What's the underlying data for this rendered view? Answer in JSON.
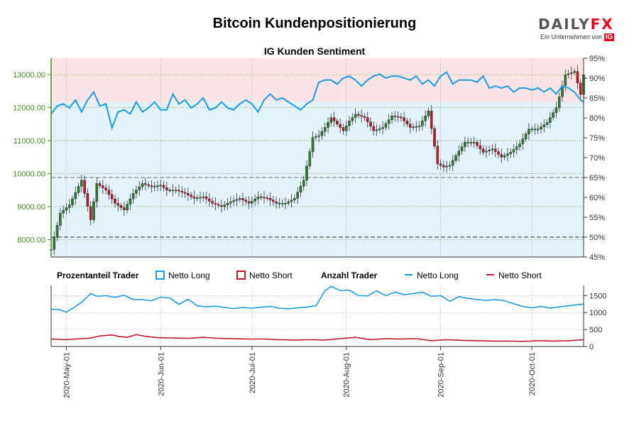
{
  "header": {
    "title": "Bitcoin Kundenpositionierung",
    "subtitle": "IG Kunden Sentiment",
    "logo_main": "DAILY",
    "logo_fx": "FX",
    "logo_sub": "Ein Unternehmen von",
    "logo_ig": "IG"
  },
  "legend": {
    "pct_title": "Prozentanteil Trader",
    "pct_long": "Netto Long",
    "pct_short": "Netto Short",
    "count_title": "Anzahl Trader",
    "count_long": "Netto Long",
    "count_short": "Netto Short"
  },
  "colors": {
    "long": "#1e9be0",
    "short": "#c0182d",
    "candle_up": "#2e7d2e",
    "candle_down": "#c0182d",
    "price_axis": "#4a8a2a"
  },
  "chart_data": [
    {
      "type": "candlestick",
      "title": "IG Kunden Sentiment",
      "y_left_ticks": [
        "8000.00",
        "9000.00",
        "10000.00",
        "11000.00",
        "12000.00",
        "13000.00"
      ],
      "y_left_range": [
        7470,
        13500
      ],
      "y_right_ticks": [
        "45%",
        "50%",
        "55%",
        "60%",
        "65%",
        "70%",
        "75%",
        "80%",
        "85%",
        "90%",
        "95%"
      ],
      "y_right_range": [
        45,
        95
      ],
      "x_ticks": [
        "2020-May-01",
        "2020-Jun-01",
        "2020-Jul-01",
        "2020-Aug-01",
        "2020-Sep-01",
        "2020-Oct-01"
      ],
      "x_range_days": [
        0,
        175
      ],
      "x_tick_days": [
        5,
        36,
        66,
        97,
        128,
        158
      ],
      "reference_lines_pct": [
        50,
        65
      ],
      "price_anchor_days": [
        0,
        3,
        6,
        10,
        13,
        15,
        18,
        21,
        24,
        27,
        30,
        33,
        36,
        38,
        41,
        44,
        47,
        50,
        53,
        56,
        59,
        62,
        65,
        68,
        71,
        74,
        77,
        80,
        83,
        86,
        88,
        90,
        92,
        94,
        96,
        98,
        100,
        103,
        106,
        109,
        112,
        115,
        118,
        121,
        124,
        127,
        129,
        131,
        133,
        136,
        139,
        142,
        145,
        148,
        151,
        154,
        157,
        160,
        163,
        166,
        169,
        172,
        174,
        175
      ],
      "price_anchor_values": [
        7700,
        8800,
        9050,
        9800,
        8600,
        9700,
        9500,
        9100,
        8900,
        9400,
        9700,
        9600,
        9650,
        9500,
        9500,
        9400,
        9250,
        9300,
        9100,
        9000,
        9150,
        9250,
        9100,
        9300,
        9250,
        9100,
        9100,
        9250,
        9800,
        11100,
        11150,
        11400,
        11700,
        11500,
        11300,
        11600,
        11800,
        11700,
        11300,
        11400,
        11750,
        11700,
        11400,
        11450,
        11900,
        10300,
        10200,
        10250,
        10550,
        10950,
        10950,
        10650,
        10750,
        10500,
        10650,
        10900,
        11350,
        11350,
        11550,
        12000,
        13000,
        13100,
        12400,
        13000
      ],
      "long_pct_anchor_days": [
        0,
        2,
        4,
        6,
        8,
        10,
        12,
        14,
        16,
        18,
        20,
        22,
        24,
        26,
        28,
        30,
        32,
        34,
        36,
        38,
        40,
        42,
        44,
        46,
        48,
        50,
        52,
        54,
        56,
        58,
        60,
        62,
        64,
        66,
        68,
        70,
        72,
        74,
        76,
        78,
        80,
        82,
        84,
        86,
        88,
        90,
        92,
        94,
        96,
        98,
        100,
        102,
        104,
        106,
        108,
        110,
        112,
        114,
        116,
        118,
        120,
        122,
        124,
        126,
        128,
        130,
        132,
        134,
        136,
        138,
        140,
        142,
        144,
        146,
        148,
        150,
        152,
        154,
        156,
        158,
        160,
        162,
        164,
        166,
        168,
        170,
        172,
        174,
        175
      ],
      "long_pct_anchor_values": [
        81,
        83,
        83.5,
        82.5,
        84.5,
        81.5,
        84.5,
        86.5,
        83,
        83.5,
        77.5,
        81.5,
        82,
        81,
        84,
        81.5,
        82.5,
        84,
        82,
        82,
        86,
        83.5,
        84.5,
        82.5,
        83.5,
        85,
        82,
        82.5,
        84,
        82.5,
        82,
        83.5,
        84.5,
        83.5,
        81.5,
        84.5,
        86,
        84.5,
        85,
        84,
        83,
        82,
        83.5,
        84.5,
        89,
        89.5,
        89.5,
        88.5,
        90,
        90.5,
        89.5,
        88,
        89.5,
        90.5,
        91,
        90,
        90.5,
        90.5,
        90,
        89.5,
        90.5,
        88.5,
        89.5,
        88,
        90.5,
        91.5,
        88.5,
        89.5,
        89.5,
        89.5,
        89,
        90.5,
        87.5,
        88,
        87.5,
        88,
        86.5,
        87.5,
        87.5,
        87,
        87.5,
        86.5,
        87.5,
        86,
        88,
        87.5,
        86.5,
        84.5,
        84
      ],
      "y_label_position": "left price axis, right percentage axis",
      "legend_position": "below"
    },
    {
      "type": "line",
      "title": "Anzahl Trader",
      "y_ticks": [
        "0",
        "500",
        "1000",
        "1500"
      ],
      "y_range": [
        0,
        1800
      ],
      "long_anchor_days": [
        0,
        3,
        5,
        7,
        10,
        13,
        15,
        18,
        21,
        24,
        27,
        30,
        33,
        36,
        39,
        42,
        45,
        48,
        51,
        54,
        57,
        60,
        63,
        66,
        69,
        72,
        75,
        78,
        81,
        84,
        87,
        90,
        92,
        95,
        98,
        101,
        104,
        107,
        110,
        113,
        116,
        119,
        122,
        125,
        128,
        131,
        134,
        137,
        140,
        143,
        146,
        149,
        152,
        155,
        158,
        161,
        164,
        167,
        170,
        173,
        175
      ],
      "long_values": [
        1100,
        1080,
        1010,
        1120,
        1300,
        1560,
        1480,
        1500,
        1450,
        1510,
        1380,
        1380,
        1350,
        1450,
        1430,
        1240,
        1390,
        1200,
        1170,
        1190,
        1150,
        1120,
        1150,
        1130,
        1160,
        1180,
        1130,
        1110,
        1140,
        1160,
        1200,
        1640,
        1770,
        1650,
        1660,
        1500,
        1490,
        1640,
        1500,
        1600,
        1530,
        1560,
        1600,
        1480,
        1500,
        1330,
        1470,
        1420,
        1380,
        1360,
        1380,
        1350,
        1260,
        1180,
        1140,
        1180,
        1130,
        1170,
        1200,
        1230,
        1250
      ],
      "short_anchor_days": [
        0,
        5,
        10,
        13,
        16,
        20,
        22,
        25,
        28,
        31,
        35,
        40,
        45,
        50,
        55,
        60,
        65,
        70,
        75,
        80,
        85,
        90,
        95,
        100,
        105,
        110,
        115,
        120,
        125,
        130,
        135,
        140,
        145,
        150,
        155,
        160,
        165,
        170,
        175
      ],
      "short_values": [
        220,
        200,
        230,
        250,
        310,
        340,
        300,
        270,
        350,
        300,
        260,
        250,
        240,
        270,
        240,
        230,
        220,
        220,
        200,
        190,
        200,
        190,
        230,
        270,
        200,
        230,
        220,
        230,
        170,
        200,
        180,
        170,
        160,
        160,
        150,
        170,
        160,
        170,
        200
      ]
    }
  ]
}
